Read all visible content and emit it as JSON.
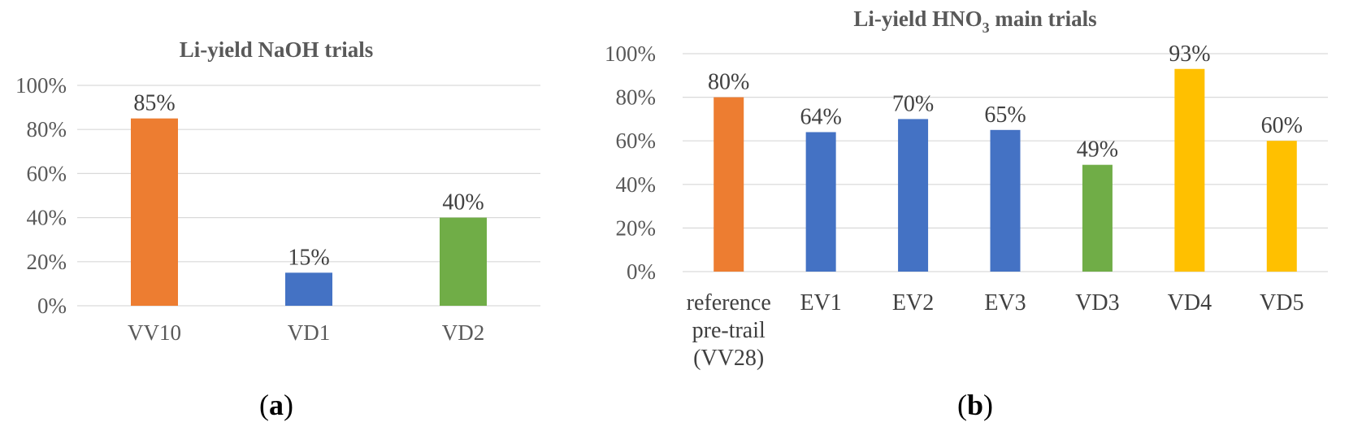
{
  "chart_data": [
    {
      "type": "bar",
      "title": "Li-yield NaOH trials",
      "categories": [
        "VV10",
        "VD1",
        "VD2"
      ],
      "values": [
        85,
        15,
        40
      ],
      "value_labels": [
        "85%",
        "15%",
        "40%"
      ],
      "colors": [
        "#ED7D31",
        "#4472C4",
        "#70AD47"
      ],
      "yticks": [
        "0%",
        "20%",
        "40%",
        "60%",
        "80%",
        "100%"
      ],
      "ylim": [
        0,
        100
      ],
      "xlabel": "",
      "ylabel": "",
      "sublabel": "a"
    },
    {
      "type": "bar",
      "title": "Li-yield HNO",
      "title_subscript": "3",
      "title_suffix": " main trials",
      "categories": [
        [
          "reference",
          "pre-trail",
          "(VV28)"
        ],
        [
          "EV1"
        ],
        [
          "EV2"
        ],
        [
          "EV3"
        ],
        [
          "VD3"
        ],
        [
          "VD4"
        ],
        [
          "VD5"
        ]
      ],
      "values": [
        80,
        64,
        70,
        65,
        49,
        93,
        60
      ],
      "value_labels": [
        "80%",
        "64%",
        "70%",
        "65%",
        "49%",
        "93%",
        "60%"
      ],
      "colors": [
        "#ED7D31",
        "#4472C4",
        "#4472C4",
        "#4472C4",
        "#70AD47",
        "#FFC000",
        "#FFC000"
      ],
      "yticks": [
        "0%",
        "20%",
        "40%",
        "60%",
        "80%",
        "100%"
      ],
      "ylim": [
        0,
        100
      ],
      "xlabel": "",
      "ylabel": "",
      "sublabel": "b"
    }
  ]
}
